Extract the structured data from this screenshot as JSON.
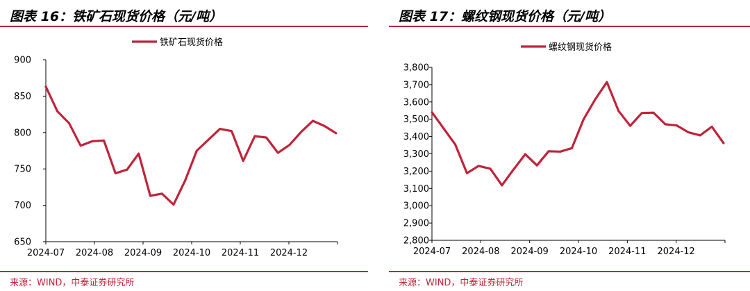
{
  "figures": [
    {
      "heading": "图表 16：铁矿石现货价格（元/吨）",
      "source": "来源：WIND，中泰证券研究所"
    },
    {
      "heading": "图表 17：螺纹钢现货价格（元/吨）",
      "source": "来源：WIND，中泰证券研究所"
    }
  ],
  "colors": {
    "accent": "#c0233a",
    "series": "#c0233a",
    "axis": "#000000"
  },
  "chart_data": [
    {
      "type": "line",
      "title": "",
      "xlabel": "",
      "ylabel": "",
      "legend_position": "top-center",
      "grid": false,
      "ylim": [
        650,
        900
      ],
      "y_ticks": [
        650,
        700,
        750,
        800,
        850,
        900
      ],
      "y_tick_labels": [
        "650",
        "700",
        "750",
        "800",
        "850",
        "900"
      ],
      "x_tick_labels": [
        "2024-07",
        "2024-08",
        "2024-09",
        "2024-10",
        "2024-11",
        "2024-12"
      ],
      "point_count": 26,
      "series": [
        {
          "name": "铁矿石现货价格",
          "values": [
            863,
            829,
            813,
            782,
            788,
            789,
            744,
            749,
            771,
            713,
            716,
            701,
            734,
            775,
            790,
            805,
            802,
            761,
            795,
            793,
            772,
            783,
            801,
            816,
            809,
            799
          ]
        }
      ]
    },
    {
      "type": "line",
      "title": "",
      "xlabel": "",
      "ylabel": "",
      "legend_position": "top-center",
      "grid": false,
      "ylim": [
        2800,
        3800
      ],
      "y_ticks": [
        2800,
        2900,
        3000,
        3100,
        3200,
        3300,
        3400,
        3500,
        3600,
        3700,
        3800
      ],
      "y_tick_labels": [
        "2,800",
        "2,900",
        "3,000",
        "3,100",
        "3,200",
        "3,300",
        "3,400",
        "3,500",
        "3,600",
        "3,700",
        "3,800"
      ],
      "x_tick_labels": [
        "2024-07",
        "2024-08",
        "2024-09",
        "2024-10",
        "2024-11",
        "2024-12"
      ],
      "point_count": 26,
      "series": [
        {
          "name": "螺纹钢现货价格",
          "values": [
            3540,
            3447,
            3354,
            3188,
            3230,
            3214,
            3118,
            3210,
            3298,
            3233,
            3315,
            3313,
            3333,
            3499,
            3615,
            3715,
            3548,
            3462,
            3536,
            3538,
            3471,
            3464,
            3424,
            3407,
            3457,
            3362
          ]
        }
      ]
    }
  ]
}
